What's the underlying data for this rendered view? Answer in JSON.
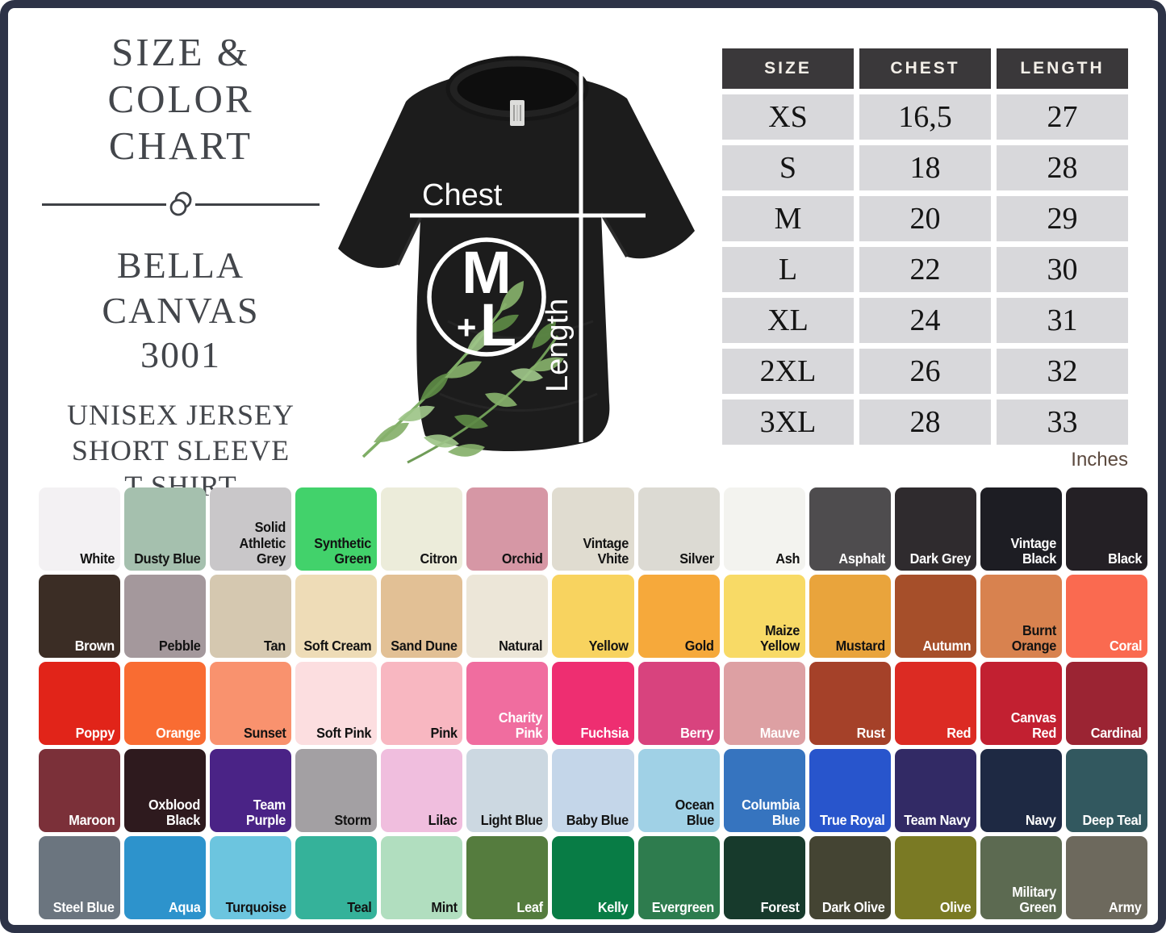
{
  "frame": {
    "border_color": "#2d3347",
    "background": "#ffffff"
  },
  "title_block": {
    "line1": "SIZE & COLOR",
    "line2": "CHART",
    "brand_line1": "BELLA CANVAS",
    "brand_line2": "3001",
    "product_line1": "UNISEX JERSEY",
    "product_line2": "SHORT SLEEVE",
    "product_line3": "T-SHIRT"
  },
  "shirt_diagram": {
    "chest_label": "Chest",
    "length_label": "Length",
    "badge_top": "M",
    "badge_plus": "+",
    "badge_bottom": "L"
  },
  "size_table": {
    "headers": [
      "SIZE",
      "CHEST",
      "LENGTH"
    ],
    "rows": [
      [
        "XS",
        "16,5",
        "27"
      ],
      [
        "S",
        "18",
        "28"
      ],
      [
        "M",
        "20",
        "29"
      ],
      [
        "L",
        "22",
        "30"
      ],
      [
        "XL",
        "24",
        "31"
      ],
      [
        "2XL",
        "26",
        "32"
      ],
      [
        "3XL",
        "28",
        "33"
      ]
    ],
    "unit_note": "Inches",
    "header_bg": "#3a383a",
    "cell_bg": "#d8d8db"
  },
  "color_grid": {
    "rows": [
      [
        {
          "name": "White",
          "hex": "#f3f1f3",
          "text": "dark"
        },
        {
          "name": "Dusty Blue",
          "hex": "#a5c0ae",
          "text": "dark"
        },
        {
          "name": "Solid Athletic Grey",
          "hex": "#c9c7c9",
          "text": "dark"
        },
        {
          "name": "Synthetic Green",
          "hex": "#42d26b",
          "text": "dark"
        },
        {
          "name": "Citron",
          "hex": "#ececda",
          "text": "dark"
        },
        {
          "name": "Orchid",
          "hex": "#d697a5",
          "text": "dark"
        },
        {
          "name": "Vintage Vhite",
          "hex": "#e0dcd0",
          "text": "dark"
        },
        {
          "name": "Silver",
          "hex": "#dcdad3",
          "text": "dark"
        },
        {
          "name": "Ash",
          "hex": "#f3f3ef",
          "text": "dark"
        },
        {
          "name": "Asphalt",
          "hex": "#4e4c4e",
          "text": "light"
        },
        {
          "name": "Dark Grey",
          "hex": "#2f2b2e",
          "text": "light"
        },
        {
          "name": "Vintage Black",
          "hex": "#1d1d23",
          "text": "light"
        },
        {
          "name": "Black",
          "hex": "#242025",
          "text": "light"
        }
      ],
      [
        {
          "name": "Brown",
          "hex": "#3b2d25",
          "text": "light"
        },
        {
          "name": "Pebble",
          "hex": "#a4989c",
          "text": "dark"
        },
        {
          "name": "Tan",
          "hex": "#d5c8b0",
          "text": "dark"
        },
        {
          "name": "Soft Cream",
          "hex": "#eedcb7",
          "text": "dark"
        },
        {
          "name": "Sand Dune",
          "hex": "#e2c095",
          "text": "dark"
        },
        {
          "name": "Natural",
          "hex": "#ece6d8",
          "text": "dark"
        },
        {
          "name": "Yellow",
          "hex": "#f8d35f",
          "text": "dark"
        },
        {
          "name": "Gold",
          "hex": "#f6a93b",
          "text": "dark"
        },
        {
          "name": "Maize Yellow",
          "hex": "#f8da66",
          "text": "dark"
        },
        {
          "name": "Mustard",
          "hex": "#e9a43c",
          "text": "dark"
        },
        {
          "name": "Autumn",
          "hex": "#a64f2a",
          "text": "light"
        },
        {
          "name": "Burnt Orange",
          "hex": "#d8824f",
          "text": "dark"
        },
        {
          "name": "Coral",
          "hex": "#fa6a50",
          "text": "light"
        }
      ],
      [
        {
          "name": "Poppy",
          "hex": "#e12419",
          "text": "light"
        },
        {
          "name": "Orange",
          "hex": "#f96c32",
          "text": "light"
        },
        {
          "name": "Sunset",
          "hex": "#f9926e",
          "text": "dark"
        },
        {
          "name": "Soft Pink",
          "hex": "#fcdee0",
          "text": "dark"
        },
        {
          "name": "Pink",
          "hex": "#f8b7c1",
          "text": "dark"
        },
        {
          "name": "Charity Pink",
          "hex": "#f06d9f",
          "text": "light"
        },
        {
          "name": "Fuchsia",
          "hex": "#ee2e71",
          "text": "light"
        },
        {
          "name": "Berry",
          "hex": "#d8437e",
          "text": "light"
        },
        {
          "name": "Mauve",
          "hex": "#dda0a3",
          "text": "light"
        },
        {
          "name": "Rust",
          "hex": "#a54129",
          "text": "light"
        },
        {
          "name": "Red",
          "hex": "#dc2b23",
          "text": "light"
        },
        {
          "name": "Canvas Red",
          "hex": "#c22031",
          "text": "light"
        },
        {
          "name": "Cardinal",
          "hex": "#9b2433",
          "text": "light"
        }
      ],
      [
        {
          "name": "Maroon",
          "hex": "#7b3039",
          "text": "light"
        },
        {
          "name": "Oxblood Black",
          "hex": "#2e1a1e",
          "text": "light"
        },
        {
          "name": "Team Purple",
          "hex": "#4a2386",
          "text": "light"
        },
        {
          "name": "Storm",
          "hex": "#a3a0a3",
          "text": "dark"
        },
        {
          "name": "Lilac",
          "hex": "#f0bede",
          "text": "dark"
        },
        {
          "name": "Light Blue",
          "hex": "#ccd8e1",
          "text": "dark"
        },
        {
          "name": "Baby Blue",
          "hex": "#c4d6e9",
          "text": "dark"
        },
        {
          "name": "Ocean Blue",
          "hex": "#a0d1e6",
          "text": "dark"
        },
        {
          "name": "Columbia Blue",
          "hex": "#3674bf",
          "text": "light"
        },
        {
          "name": "True Royal",
          "hex": "#2855cc",
          "text": "light"
        },
        {
          "name": "Team Navy",
          "hex": "#322a65",
          "text": "light"
        },
        {
          "name": "Navy",
          "hex": "#1e2943",
          "text": "light"
        },
        {
          "name": "Deep Teal",
          "hex": "#32585f",
          "text": "light"
        }
      ],
      [
        {
          "name": "Steel Blue",
          "hex": "#6b757f",
          "text": "light"
        },
        {
          "name": "Aqua",
          "hex": "#2d93cc",
          "text": "light"
        },
        {
          "name": "Turquoise",
          "hex": "#6cc5df",
          "text": "dark"
        },
        {
          "name": "Teal",
          "hex": "#35b29a",
          "text": "dark"
        },
        {
          "name": "Mint",
          "hex": "#b1debf",
          "text": "dark"
        },
        {
          "name": "Leaf",
          "hex": "#557c3e",
          "text": "light"
        },
        {
          "name": "Kelly",
          "hex": "#087c45",
          "text": "light"
        },
        {
          "name": "Evergreen",
          "hex": "#2e7c4e",
          "text": "light"
        },
        {
          "name": "Forest",
          "hex": "#173a2c",
          "text": "light"
        },
        {
          "name": "Dark Olive",
          "hex": "#444433",
          "text": "light"
        },
        {
          "name": "Olive",
          "hex": "#7a7a24",
          "text": "light"
        },
        {
          "name": "Military Green",
          "hex": "#5c6a51",
          "text": "light"
        },
        {
          "name": "Army",
          "hex": "#6d695d",
          "text": "light"
        }
      ]
    ]
  }
}
